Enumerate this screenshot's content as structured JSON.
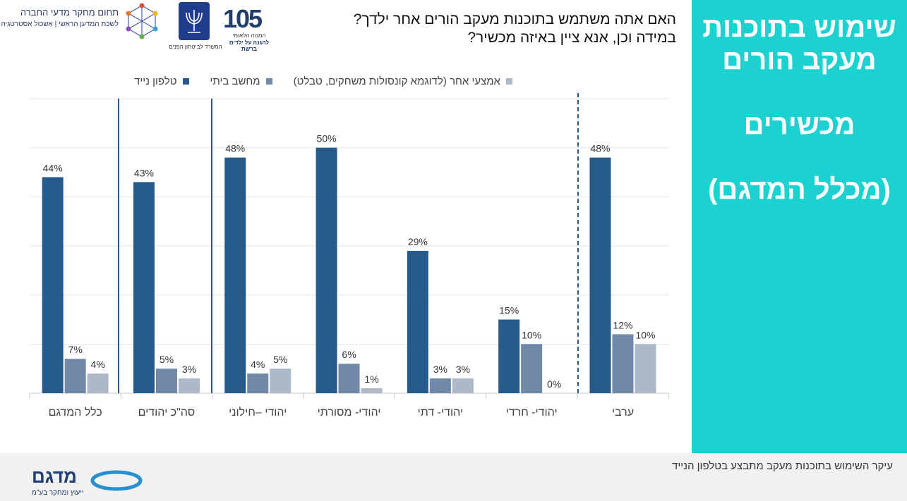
{
  "side_panel": {
    "title_line1": "שימוש בתוכנות",
    "title_line2": "מעקב הורים",
    "title_line3": "מכשירים",
    "title_line4": "(מכלל המדגם)"
  },
  "question": {
    "line1": "האם אתה משתמש בתוכנות מעקב הורים אחר ילדך?",
    "line2": "במידה וכן, אנא ציין באיזה מכשיר?"
  },
  "logos": {
    "society_line1": "תחום מחקר מדעי החברה",
    "society_line2": "לשכת המדען הראשי | אשכול אסטרטגיה",
    "ministry": "המשרד לביטחון הפנים",
    "hotline_number": "105",
    "hotline_line1": "המטה הלאומי",
    "hotline_line2": "להגנה על ילדים ברשת"
  },
  "footer": {
    "note": "עיקר השימוש בתוכנות מעקב מתבצע בטלפון הנייד",
    "brand_name": "מדגם",
    "brand_tagline": "ייעוץ ומחקר בע\"מ"
  },
  "colors": {
    "mobile": "#255a8a",
    "computer": "#7189a8",
    "other": "#adb9c9",
    "panel": "#1bd2d0",
    "separator": "#255a8a"
  },
  "chart_data": {
    "type": "bar",
    "categories": [
      "כלל המדגם",
      "סה\"כ יהודים",
      "יהודי –חילוני",
      "יהודי- מסורתי",
      "יהודי- דתי",
      "יהודי- חרדי",
      "ערבי"
    ],
    "series": [
      {
        "name": "טלפון נייד",
        "values": [
          44,
          43,
          48,
          50,
          29,
          15,
          48
        ]
      },
      {
        "name": "מחשב ביתי",
        "values": [
          7,
          5,
          4,
          6,
          3,
          10,
          12
        ]
      },
      {
        "name": "אמצעי אחר (לדוגמא קונסולות משחקים, טבלט)",
        "values": [
          4,
          3,
          5,
          1,
          3,
          0,
          10
        ]
      }
    ],
    "value_suffix": "%",
    "ylim": [
      0,
      60
    ],
    "grid": true,
    "legend": "top"
  }
}
